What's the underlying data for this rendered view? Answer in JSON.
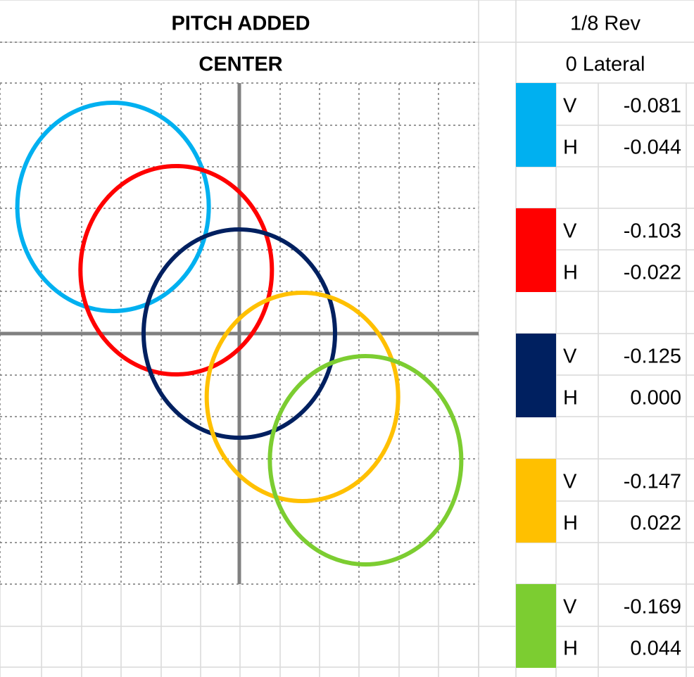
{
  "chart_data": {
    "type": "scatter",
    "title": "PITCH ADDED",
    "subtitle": "CENTER",
    "header": [
      "1/8 Rev",
      "0 Lateral"
    ],
    "value_name": "V",
    "x_name": "H",
    "xlim": [
      -0.0834,
      0.0834
    ],
    "ylim": [
      -0.212,
      -0.038
    ],
    "series": [
      {
        "color": "#00b0f0",
        "values": [
          -0.081
        ],
        "x": [
          -0.044
        ]
      },
      {
        "color": "#ff0000",
        "values": [
          -0.103
        ],
        "x": [
          -0.022
        ]
      },
      {
        "color": "#002060",
        "values": [
          -0.125
        ],
        "x": [
          0
        ],
        "x_labels": [
          "0.000"
        ]
      },
      {
        "color": "#ffc000",
        "values": [
          -0.147
        ],
        "x": [
          0.022
        ]
      },
      {
        "color": "#7ccd31",
        "values": [
          -0.169
        ],
        "x": [
          0.044
        ]
      }
    ]
  }
}
